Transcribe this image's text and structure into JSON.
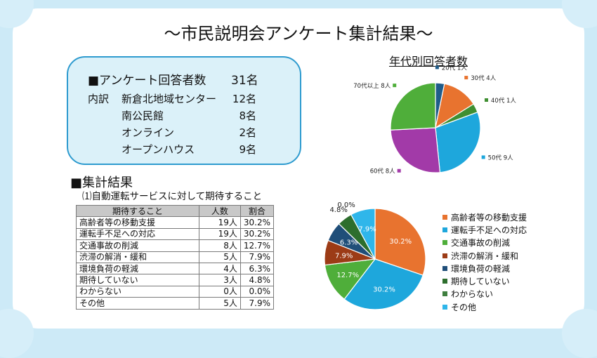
{
  "title": "～市民説明会アンケート集計結果～",
  "summary": {
    "heading": "■アンケート回答者数",
    "total": "31名",
    "breakdown_label": "内訳",
    "rows": [
      {
        "label": "新倉北地域センター",
        "value": "12名"
      },
      {
        "label": "南公民館",
        "value": "8名"
      },
      {
        "label": "オンライン",
        "value": "2名"
      },
      {
        "label": "オープンハウス",
        "value": "9名"
      }
    ]
  },
  "results": {
    "heading": "■集計結果",
    "question": "⑴自動運転サービスに対して期待すること",
    "columns": [
      "期待すること",
      "人数",
      "割合"
    ],
    "rows": [
      [
        "高齢者等の移動支援",
        "19人",
        "30.2%"
      ],
      [
        "運転手不足への対応",
        "19人",
        "30.2%"
      ],
      [
        "交通事故の削減",
        "8人",
        "12.7%"
      ],
      [
        "渋滞の解消・緩和",
        "5人",
        "7.9%"
      ],
      [
        "環境負荷の軽減",
        "4人",
        "6.3%"
      ],
      [
        "期待していない",
        "3人",
        "4.8%"
      ],
      [
        "わからない",
        "0人",
        "0.0%"
      ],
      [
        "その他",
        "5人",
        "7.9%"
      ]
    ]
  },
  "chart_data": [
    {
      "type": "pie",
      "title": "年代別回答者数",
      "labels": [
        "20代 1人",
        "30代 4人",
        "40代 1人",
        "50代 9人",
        "60代 8人",
        "70代以上 8人"
      ],
      "values": [
        1,
        4,
        1,
        9,
        8,
        8
      ],
      "colors": [
        "#1f5c8a",
        "#e8732f",
        "#3f8f32",
        "#1ea7dc",
        "#a23aa8",
        "#4fae3a"
      ]
    },
    {
      "type": "pie",
      "labels": [
        "高齢者等の移動支援",
        "運転手不足への対応",
        "交通事故の削減",
        "渋滞の解消・緩和",
        "環境負荷の軽減",
        "期待していない",
        "わからない",
        "その他"
      ],
      "values": [
        30.2,
        30.2,
        12.7,
        7.9,
        6.3,
        4.8,
        0.0,
        7.9
      ],
      "data_labels": [
        "30.2%",
        "30.2%",
        "12.7%",
        "7.9%",
        "6.3%",
        "4.8%",
        "0.0%",
        "7.9%"
      ],
      "colors": [
        "#e8732f",
        "#1ea7dc",
        "#4fae3a",
        "#9c3b16",
        "#1f4e79",
        "#2d6e2d",
        "#3f7f3f",
        "#2fb6ea"
      ],
      "legend": "right"
    }
  ]
}
